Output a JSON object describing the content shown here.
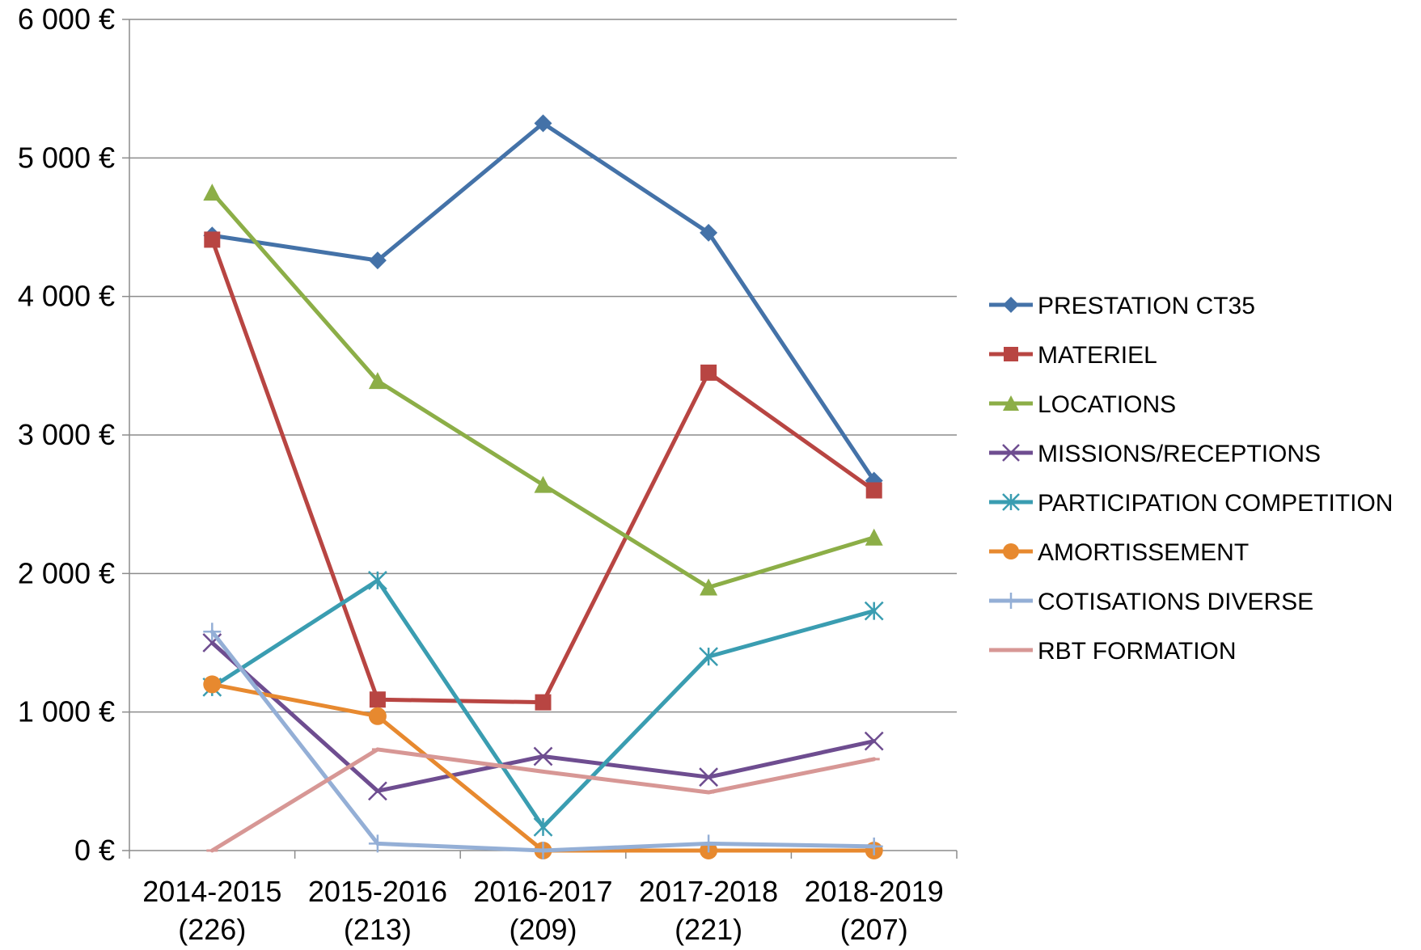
{
  "chart_data": {
    "type": "line",
    "title": "",
    "xlabel": "",
    "ylabel": "",
    "categories": [
      [
        "2014-2015",
        "(226)"
      ],
      [
        "2015-2016",
        "(213)"
      ],
      [
        "2016-2017",
        "(209)"
      ],
      [
        "2017-2018",
        "(221)"
      ],
      [
        "2018-2019",
        "(207)"
      ]
    ],
    "ylim": [
      0,
      6000
    ],
    "yticks": [
      {
        "value": 0,
        "label": "0 €"
      },
      {
        "value": 1000,
        "label": "1 000 €"
      },
      {
        "value": 2000,
        "label": "2 000 €"
      },
      {
        "value": 3000,
        "label": "3 000 €"
      },
      {
        "value": 4000,
        "label": "4 000 €"
      },
      {
        "value": 5000,
        "label": "5 000 €"
      },
      {
        "value": 6000,
        "label": "6 000 €"
      }
    ],
    "grid": "horizontal",
    "legend_position": "right",
    "series": [
      {
        "name": "PRESTATION CT35",
        "color": "#4472A8",
        "marker": "diamond",
        "values": [
          4440,
          4260,
          5250,
          4460,
          2670
        ]
      },
      {
        "name": "MATERIEL",
        "color": "#B84542",
        "marker": "square",
        "values": [
          4410,
          1090,
          1070,
          3450,
          2600
        ]
      },
      {
        "name": "LOCATIONS",
        "color": "#8CAE47",
        "marker": "triangle",
        "values": [
          4750,
          3390,
          2640,
          1900,
          2260
        ]
      },
      {
        "name": "MISSIONS/RECEPTIONS",
        "color": "#6E4D90",
        "marker": "x",
        "values": [
          1500,
          430,
          680,
          530,
          790
        ]
      },
      {
        "name": "PARTICIPATION COMPETITION",
        "color": "#3A9DB1",
        "marker": "star",
        "values": [
          1180,
          1950,
          170,
          1400,
          1730
        ]
      },
      {
        "name": "AMORTISSEMENT",
        "color": "#E7892F",
        "marker": "circle",
        "values": [
          1200,
          970,
          0,
          0,
          0
        ]
      },
      {
        "name": "COTISATIONS DIVERSE",
        "color": "#94AFD6",
        "marker": "plus",
        "values": [
          1580,
          50,
          0,
          50,
          30
        ]
      },
      {
        "name": "RBT FORMATION",
        "color": "#D79795",
        "marker": "dash",
        "values": [
          0,
          730,
          570,
          420,
          660
        ]
      }
    ]
  }
}
